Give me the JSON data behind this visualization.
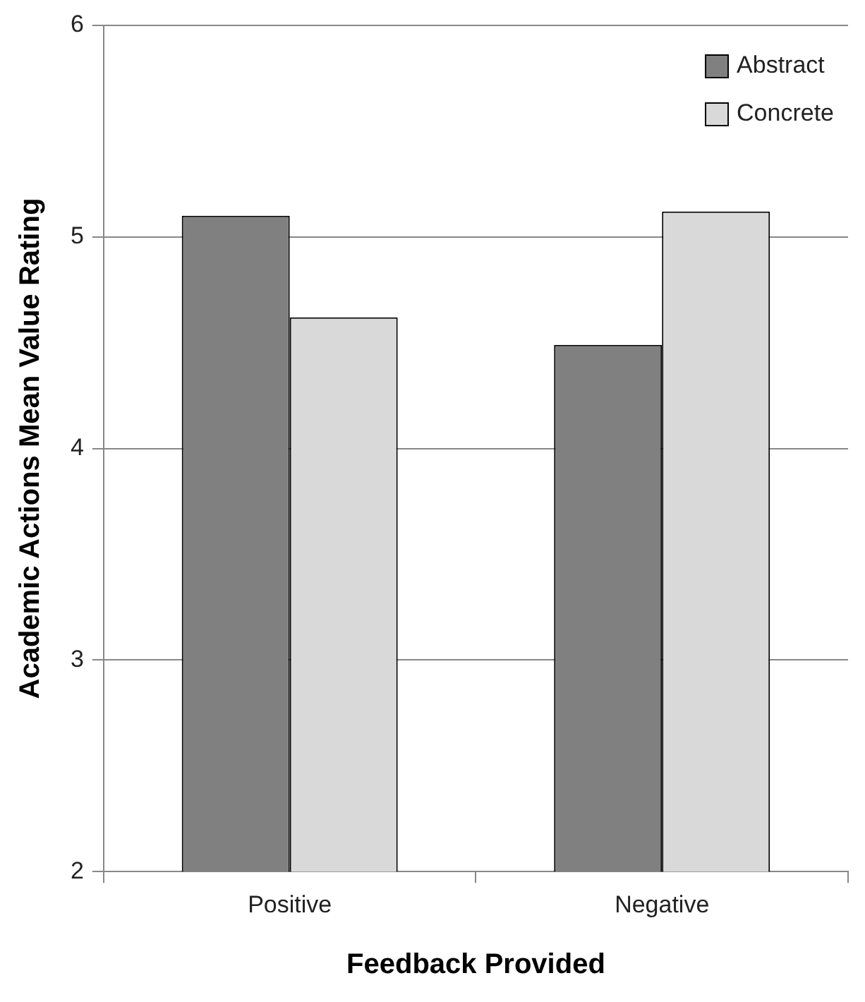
{
  "chart_data": {
    "type": "bar",
    "xlabel": "Feedback Provided",
    "ylabel": "Academic Actions Mean Value Rating",
    "categories": [
      "Positive",
      "Negative"
    ],
    "series": [
      {
        "name": "Abstract",
        "color": "#808080",
        "values": [
          5.1,
          4.49
        ]
      },
      {
        "name": "Concrete",
        "color": "#d9d9d9",
        "values": [
          4.62,
          5.12
        ]
      }
    ],
    "ylim": [
      2,
      6
    ],
    "yticks": [
      2,
      3,
      4,
      5,
      6
    ],
    "grid": "y",
    "legend": "top right"
  }
}
